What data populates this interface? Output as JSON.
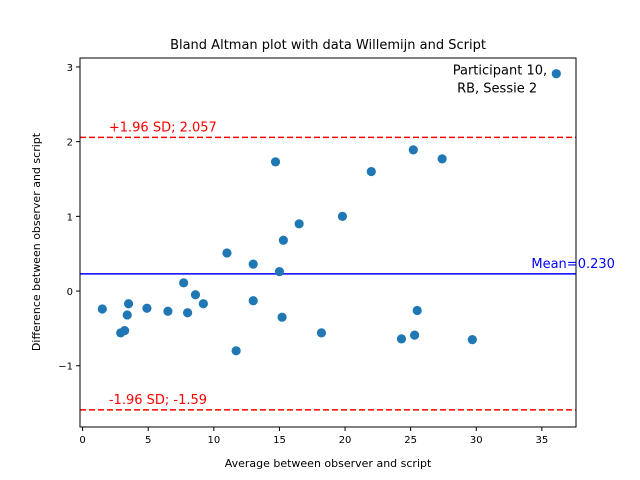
{
  "chart_data": {
    "type": "scatter",
    "title": "Bland Altman plot with data Willemijn and Script",
    "xlabel": "Average between observer and script",
    "ylabel": "Difference between observer and script",
    "xlim": [
      -0.2,
      37.6
    ],
    "ylim": [
      -1.82,
      3.12
    ],
    "xticks": [
      0,
      5,
      10,
      15,
      20,
      25,
      30,
      35
    ],
    "yticks": [
      -1,
      0,
      1,
      2,
      3
    ],
    "grid": false,
    "point_color": "#1f77b4",
    "series": [
      {
        "points": [
          {
            "x": 1.5,
            "y": -0.24
          },
          {
            "x": 2.9,
            "y": -0.56
          },
          {
            "x": 3.2,
            "y": -0.53
          },
          {
            "x": 3.4,
            "y": -0.32
          },
          {
            "x": 3.5,
            "y": -0.17
          },
          {
            "x": 4.9,
            "y": -0.23
          },
          {
            "x": 6.5,
            "y": -0.27
          },
          {
            "x": 7.7,
            "y": 0.11
          },
          {
            "x": 8.0,
            "y": -0.29
          },
          {
            "x": 8.6,
            "y": -0.05
          },
          {
            "x": 9.2,
            "y": -0.17
          },
          {
            "x": 11.0,
            "y": 0.51
          },
          {
            "x": 11.7,
            "y": -0.8
          },
          {
            "x": 13.0,
            "y": 0.36
          },
          {
            "x": 13.0,
            "y": -0.13
          },
          {
            "x": 14.7,
            "y": 1.73
          },
          {
            "x": 15.0,
            "y": 0.26
          },
          {
            "x": 15.2,
            "y": -0.35
          },
          {
            "x": 15.3,
            "y": 0.68
          },
          {
            "x": 16.5,
            "y": 0.9
          },
          {
            "x": 18.2,
            "y": -0.56
          },
          {
            "x": 19.8,
            "y": 1.0
          },
          {
            "x": 22.0,
            "y": 1.6
          },
          {
            "x": 24.3,
            "y": -0.64
          },
          {
            "x": 25.2,
            "y": 1.89
          },
          {
            "x": 25.3,
            "y": -0.59
          },
          {
            "x": 25.5,
            "y": -0.26
          },
          {
            "x": 27.4,
            "y": 1.77
          },
          {
            "x": 29.7,
            "y": -0.65
          },
          {
            "x": 36.1,
            "y": 2.91
          }
        ]
      }
    ],
    "reference_lines": [
      {
        "y": 2.057,
        "label": "+1.96 SD; 2.057",
        "color": "#ff0000",
        "style": "dashed",
        "label_x": 2.0
      },
      {
        "y": -1.59,
        "label": "-1.96 SD; -1.59",
        "color": "#ff0000",
        "style": "dashed",
        "label_x": 2.0
      },
      {
        "y": 0.23,
        "label": "Mean=0.230",
        "color": "#0000ff",
        "style": "solid",
        "label_x": 34.2
      }
    ],
    "annotations": [
      {
        "line1": "Participant 10,",
        "line2": "RB, Sessie 2",
        "x": 35.4,
        "y": 2.91
      }
    ]
  }
}
